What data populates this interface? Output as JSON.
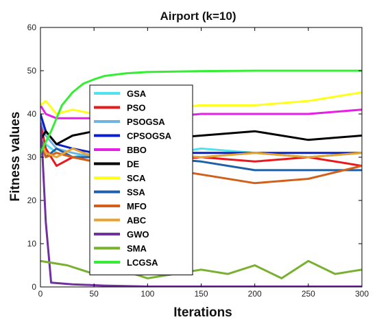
{
  "chart_data": {
    "type": "line",
    "title": "Airport  (k=10)",
    "xlabel": "Iterations",
    "ylabel": "Fitness  values",
    "xlim": [
      0,
      300
    ],
    "ylim": [
      0,
      60
    ],
    "xticks": [
      0,
      50,
      100,
      150,
      200,
      250,
      300
    ],
    "yticks": [
      0,
      10,
      20,
      30,
      40,
      50,
      60
    ],
    "grid": false,
    "legend_position": "left-inside",
    "series": [
      {
        "name": "GSA",
        "color": "#4fe3f0",
        "x": [
          0,
          5,
          15,
          30,
          50,
          100,
          150,
          200,
          250,
          300
        ],
        "y": [
          30,
          33,
          31,
          30,
          31,
          30,
          32,
          31,
          30,
          31
        ]
      },
      {
        "name": "PSO",
        "color": "#e8191c",
        "x": [
          0,
          5,
          15,
          30,
          50,
          100,
          150,
          200,
          250,
          300
        ],
        "y": [
          38,
          32,
          28,
          30,
          29,
          29,
          30,
          29,
          30,
          28
        ]
      },
      {
        "name": "PSOGSA",
        "color": "#6fb4e0",
        "x": [
          0,
          5,
          15,
          30,
          50,
          100,
          150,
          200,
          250,
          300
        ],
        "y": [
          39,
          35,
          32,
          31,
          30,
          31,
          30,
          31,
          30,
          31
        ]
      },
      {
        "name": "CPSOGSA",
        "color": "#0b1fc8",
        "x": [
          0,
          5,
          15,
          30,
          50,
          100,
          150,
          200,
          250,
          300
        ],
        "y": [
          40,
          36,
          33,
          32,
          31,
          31,
          31,
          31,
          31,
          31
        ]
      },
      {
        "name": "BBO",
        "color": "#e61ee6",
        "x": [
          0,
          5,
          15,
          30,
          50,
          100,
          150,
          200,
          250,
          300
        ],
        "y": [
          42,
          40,
          39,
          39,
          39,
          39,
          40,
          40,
          40,
          41
        ]
      },
      {
        "name": "DE",
        "color": "#000000",
        "x": [
          0,
          5,
          15,
          30,
          50,
          100,
          150,
          200,
          250,
          300
        ],
        "y": [
          34,
          36,
          33,
          35,
          36,
          34,
          35,
          36,
          34,
          35
        ]
      },
      {
        "name": "SCA",
        "color": "#ffff1a",
        "x": [
          0,
          5,
          15,
          30,
          50,
          100,
          150,
          200,
          250,
          300
        ],
        "y": [
          42,
          43,
          40,
          41,
          40,
          41,
          42,
          42,
          43,
          45
        ]
      },
      {
        "name": "SSA",
        "color": "#1f5fa8",
        "x": [
          0,
          5,
          15,
          30,
          50,
          100,
          150,
          200,
          250,
          300
        ],
        "y": [
          35,
          30,
          32,
          30,
          30,
          30,
          29,
          27,
          27,
          27
        ]
      },
      {
        "name": "MFO",
        "color": "#d2601a",
        "x": [
          0,
          5,
          15,
          30,
          50,
          100,
          150,
          200,
          250,
          300
        ],
        "y": [
          33,
          30,
          31,
          30,
          29,
          28,
          26,
          24,
          25,
          28
        ]
      },
      {
        "name": "ABC",
        "color": "#e6a532",
        "x": [
          0,
          5,
          15,
          30,
          50,
          100,
          150,
          200,
          250,
          300
        ],
        "y": [
          34,
          31,
          30,
          32,
          30,
          31,
          30,
          31,
          30,
          31
        ]
      },
      {
        "name": "GWO",
        "color": "#7030a0",
        "x": [
          0,
          2,
          5,
          10,
          30,
          60,
          100,
          150,
          200,
          250,
          300
        ],
        "y": [
          38,
          30,
          15,
          1,
          0.6,
          0.3,
          0.1,
          0.1,
          0.1,
          0.1,
          0.1
        ]
      },
      {
        "name": "SMA",
        "color": "#78b030",
        "x": [
          0,
          25,
          50,
          75,
          100,
          125,
          150,
          175,
          200,
          225,
          250,
          275,
          300
        ],
        "y": [
          6,
          5,
          3,
          4,
          2,
          3,
          4,
          3,
          5,
          2,
          6,
          3,
          4
        ]
      },
      {
        "name": "LCGSA",
        "color": "#33ee33",
        "x": [
          0,
          10,
          20,
          30,
          40,
          50,
          60,
          80,
          100,
          150,
          200,
          250,
          300
        ],
        "y": [
          31,
          36,
          42,
          45,
          47,
          48,
          48.8,
          49.4,
          49.7,
          49.9,
          50,
          50,
          50
        ]
      }
    ]
  }
}
